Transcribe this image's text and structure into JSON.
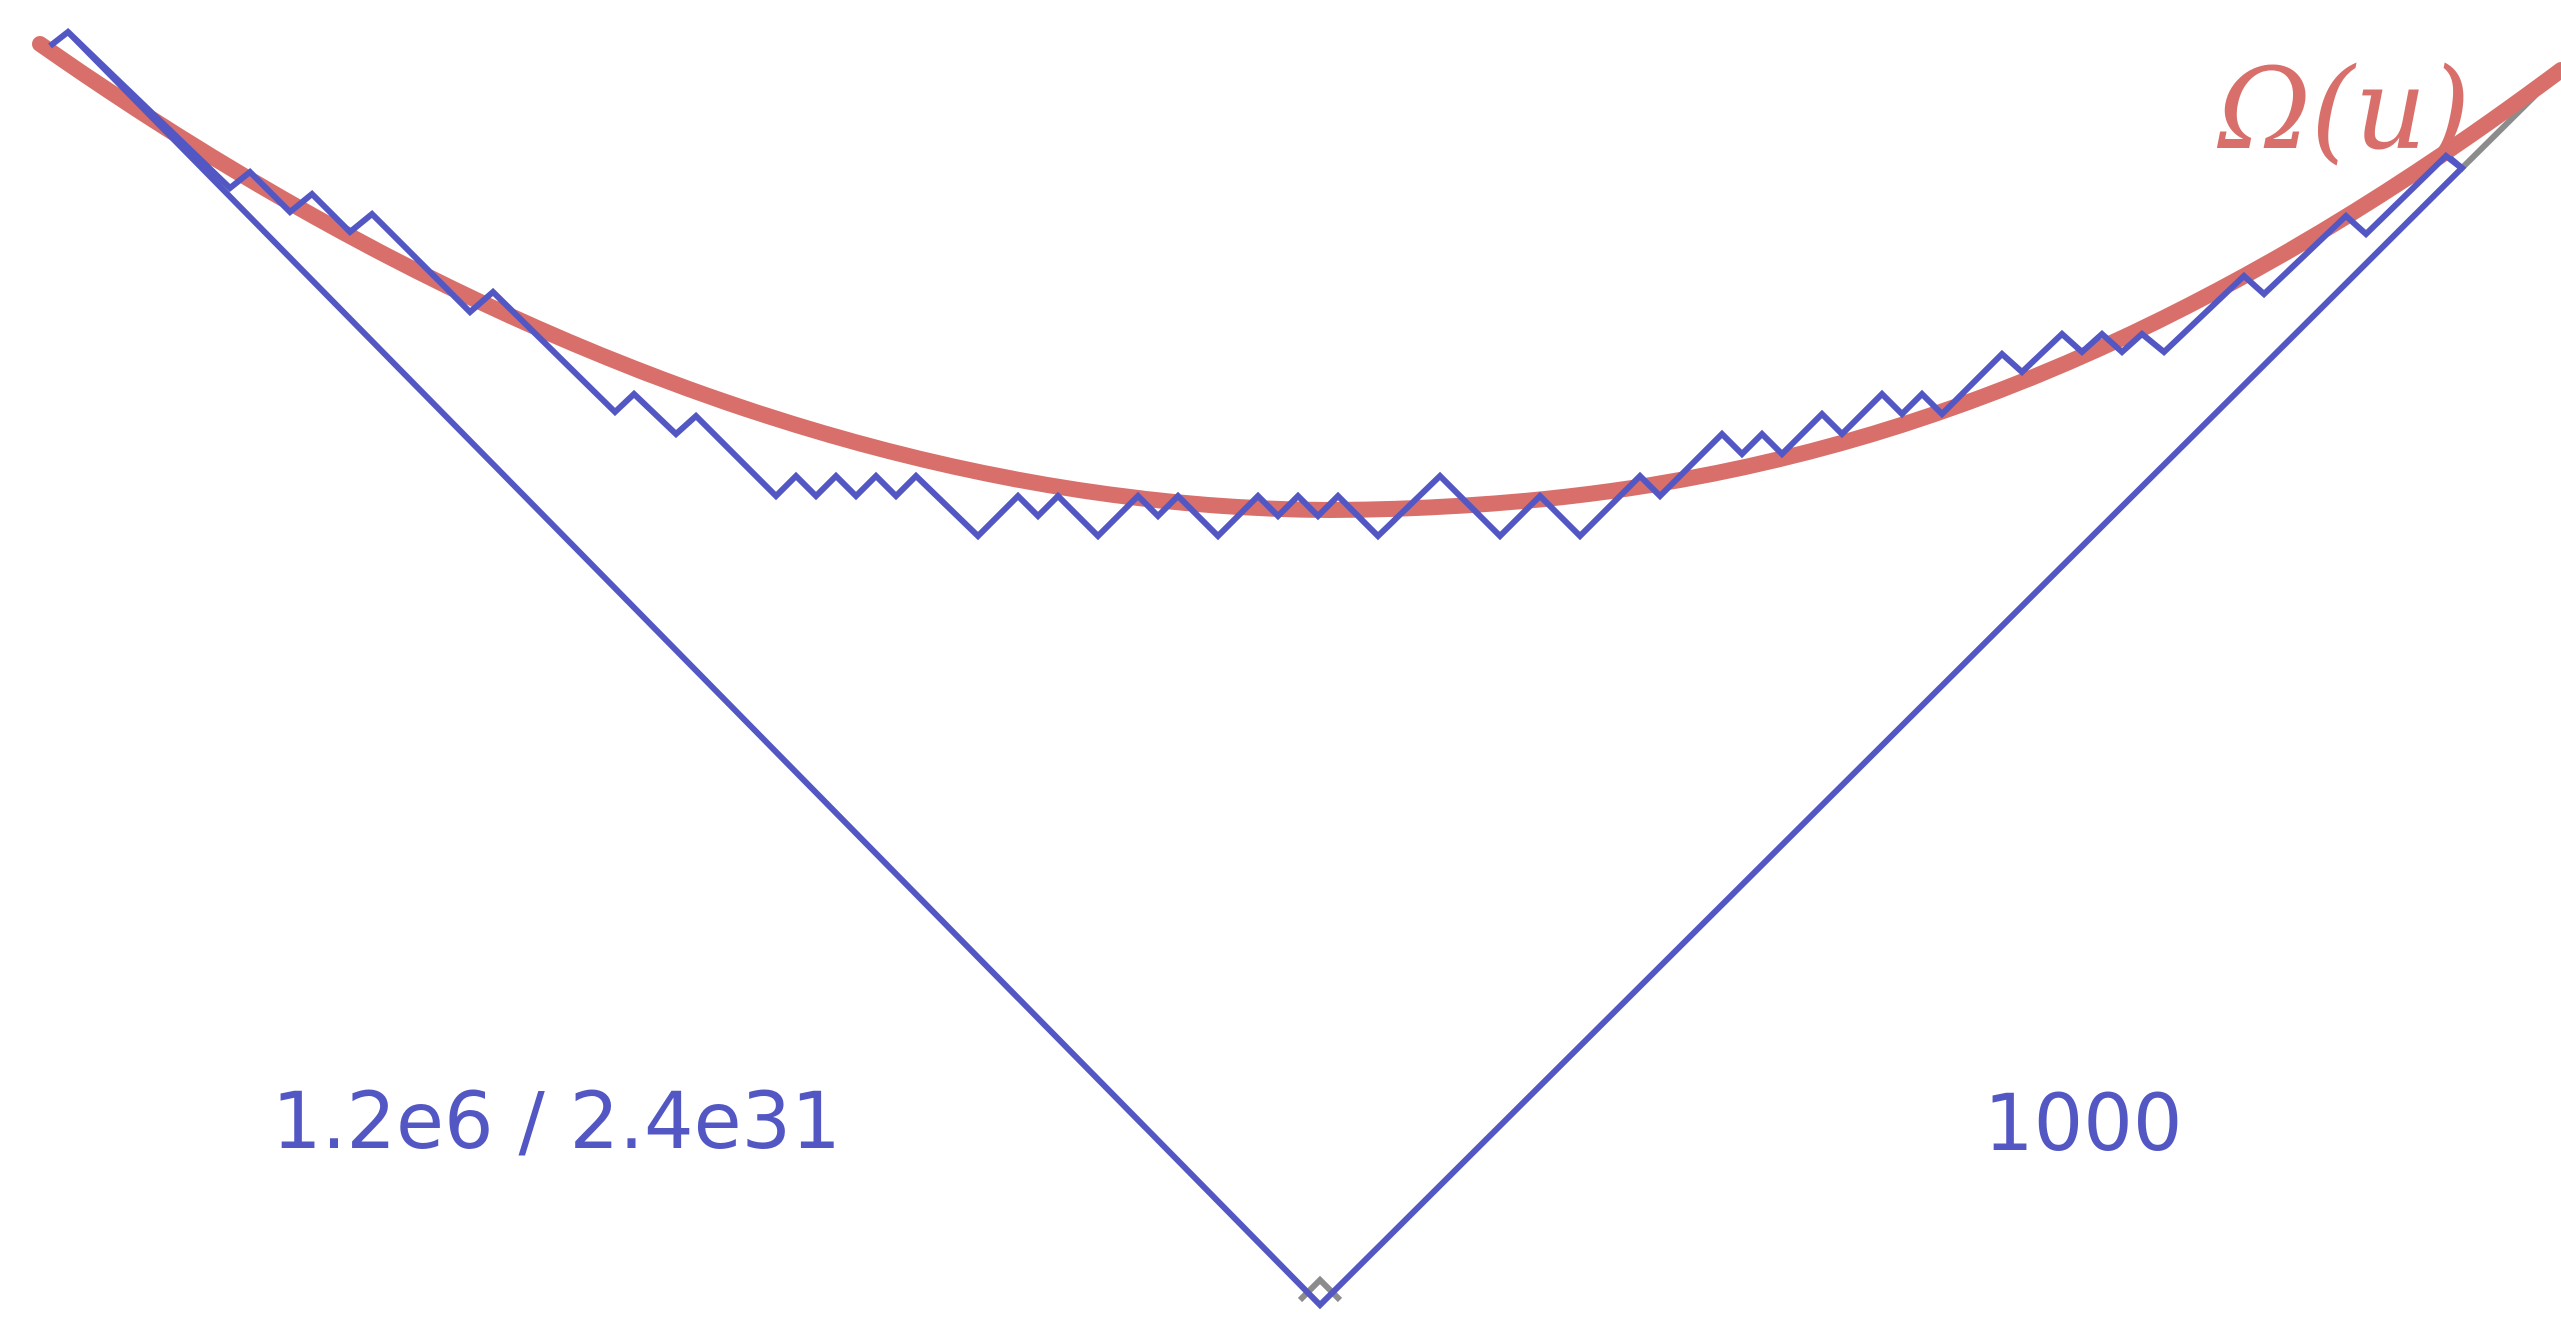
{
  "labels": {
    "left_count": "1.2e6 / 2.4e31",
    "right_count": "1000",
    "curve_label": "Ω(u)"
  },
  "colors": {
    "background": "#ffffff",
    "path_blue": "#5357c4",
    "curve_red": "#d86f6b",
    "outline_gray": "#8c8c8c"
  }
}
